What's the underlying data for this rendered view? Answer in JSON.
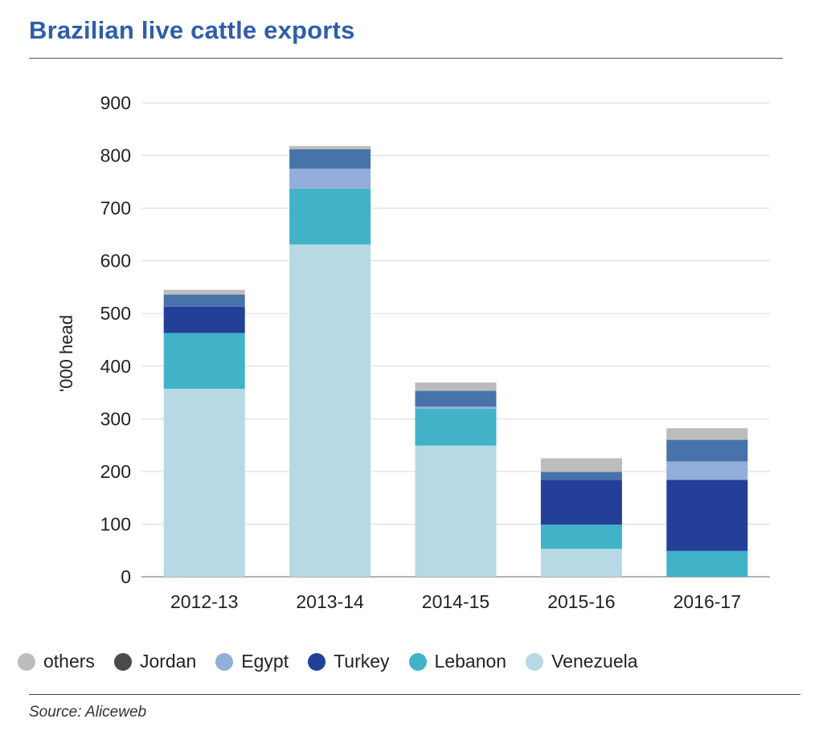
{
  "header": {
    "title": "Brazilian live cattle exports"
  },
  "footer": {
    "source": "Source: Aliceweb"
  },
  "colors": {
    "others": "#bcbcbc",
    "Jordan": "#4773aa",
    "Egypt": "#93aedb",
    "Turkey": "#233f97",
    "Lebanon": "#41b2c8",
    "Venezuela": "#b6d9e4",
    "grid": "#d9d9d9"
  },
  "legend": [
    {
      "name": "others",
      "color": "#bcbcbc"
    },
    {
      "name": "Jordan",
      "color": "#4a4a4a"
    },
    {
      "name": "Egypt",
      "color": "#93aedb"
    },
    {
      "name": "Turkey",
      "color": "#233f97"
    },
    {
      "name": "Lebanon",
      "color": "#41b2c8"
    },
    {
      "name": "Venezuela",
      "color": "#b6d9e4"
    }
  ],
  "chart_data": {
    "type": "bar",
    "stacked": true,
    "title": "Brazilian live cattle exports",
    "xlabel": "",
    "ylabel": "'000 head",
    "ylim": [
      0,
      900
    ],
    "yticks": [
      0,
      100,
      200,
      300,
      400,
      500,
      600,
      700,
      800,
      900
    ],
    "grid": true,
    "legend_position": "bottom",
    "categories": [
      "2012-13",
      "2013-14",
      "2014-15",
      "2015-16",
      "2016-17"
    ],
    "series": [
      {
        "name": "Venezuela",
        "values": [
          357,
          631,
          249,
          53,
          0
        ]
      },
      {
        "name": "Lebanon",
        "values": [
          106,
          106,
          70,
          46,
          49
        ]
      },
      {
        "name": "Turkey",
        "values": [
          50,
          0,
          0,
          85,
          135
        ]
      },
      {
        "name": "Egypt",
        "values": [
          0,
          38,
          4,
          0,
          35
        ]
      },
      {
        "name": "Jordan",
        "values": [
          23,
          37,
          30,
          15,
          41
        ]
      },
      {
        "name": "others",
        "values": [
          9,
          6,
          16,
          26,
          22
        ]
      }
    ]
  }
}
